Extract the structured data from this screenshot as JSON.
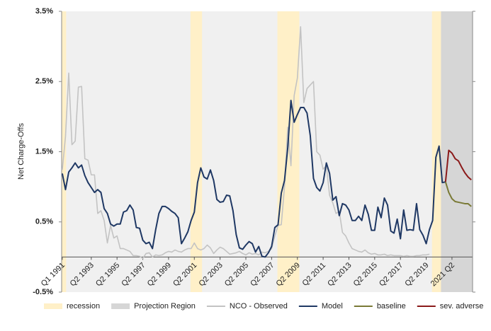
{
  "chart_data": {
    "type": "line",
    "y_label": "Net Charge-Offs",
    "x": [
      1991,
      1991.25,
      1991.5,
      1991.75,
      1992,
      1992.25,
      1992.5,
      1992.75,
      1993,
      1993.25,
      1993.5,
      1993.75,
      1994,
      1994.25,
      1994.5,
      1994.75,
      1995,
      1995.25,
      1995.5,
      1995.75,
      1996,
      1996.25,
      1996.5,
      1996.75,
      1997,
      1997.25,
      1997.5,
      1997.75,
      1998,
      1998.25,
      1998.5,
      1998.75,
      1999,
      1999.25,
      1999.5,
      1999.75,
      2000,
      2000.25,
      2000.5,
      2000.75,
      2001,
      2001.25,
      2001.5,
      2001.75,
      2002,
      2002.25,
      2002.5,
      2002.75,
      2003,
      2003.25,
      2003.5,
      2003.75,
      2004,
      2004.25,
      2004.5,
      2004.75,
      2005,
      2005.25,
      2005.5,
      2005.75,
      2006,
      2006.25,
      2006.5,
      2006.75,
      2007,
      2007.25,
      2007.5,
      2007.75,
      2008,
      2008.25,
      2008.5,
      2008.75,
      2009,
      2009.25,
      2009.5,
      2009.75,
      2010,
      2010.25,
      2010.5,
      2010.75,
      2011,
      2011.25,
      2011.5,
      2011.75,
      2012,
      2012.25,
      2012.5,
      2012.75,
      2013,
      2013.25,
      2013.5,
      2013.75,
      2014,
      2014.25,
      2014.5,
      2014.75,
      2015,
      2015.25,
      2015.5,
      2015.75,
      2016,
      2016.25,
      2016.5,
      2016.75,
      2017,
      2017.25,
      2017.5,
      2017.75,
      2018,
      2018.25,
      2018.5,
      2018.75,
      2019,
      2019.25,
      2019.5,
      2019.75,
      2020,
      2020.25,
      2020.5,
      2020.75,
      2021,
      2021.25,
      2021.5,
      2021.75,
      2022,
      2022.25,
      2022.5,
      2022.75
    ],
    "bands": [
      {
        "name": "recession",
        "color": "#fff0c8",
        "ranges": [
          [
            1990.95,
            1991.3
          ],
          [
            2000.95,
            2001.85
          ],
          [
            2007.7,
            2009.4
          ],
          [
            2019.7,
            2020.4
          ]
        ]
      },
      {
        "name": "Projection Region",
        "color": "#d6d6d6",
        "ranges": [
          [
            2020.4,
            2022.85
          ]
        ]
      }
    ],
    "series": [
      {
        "name": "NCO - Observed",
        "color": "#c3c3c3",
        "values": [
          1.24,
          1.72,
          2.62,
          1.6,
          1.65,
          2.42,
          2.43,
          1.4,
          1.38,
          1.17,
          1.17,
          0.62,
          0.66,
          0.52,
          0.2,
          0.45,
          0.27,
          0.3,
          0.12,
          0.12,
          0.1,
          0.08,
          0.02,
          0.02,
          0.01,
          -0.02,
          0.05,
          0.06,
          0.0,
          0.03,
          0.02,
          0.03,
          0.06,
          0.08,
          0.07,
          0.1,
          0.08,
          0.07,
          0.1,
          0.12,
          0.12,
          0.2,
          0.12,
          0.1,
          0.12,
          0.17,
          0.13,
          0.05,
          0.1,
          0.14,
          0.12,
          0.08,
          0.04,
          0.05,
          0.06,
          0.08,
          0.05,
          0.03,
          0.06,
          0.04,
          0.05,
          0.03,
          0.07,
          0.06,
          0.08,
          0.12,
          0.3,
          0.45,
          0.46,
          1.0,
          1.85,
          1.3,
          2.3,
          2.55,
          3.28,
          2.2,
          2.4,
          2.45,
          2.5,
          1.5,
          1.45,
          1.25,
          1.3,
          0.88,
          0.77,
          0.62,
          0.65,
          0.35,
          0.3,
          0.2,
          0.12,
          0.1,
          0.08,
          0.07,
          0.1,
          0.06,
          0.04,
          0.05,
          0.03,
          0.03,
          0.04,
          0.02,
          0.03,
          0.02,
          0.02,
          0.02,
          0.01,
          0.02,
          0.01,
          0.01,
          0.02,
          0.02,
          0.03,
          0.03,
          0.04,
          null,
          null,
          null,
          null,
          null,
          null,
          null,
          null,
          null,
          null,
          null,
          null,
          null
        ]
      },
      {
        "name": "Model",
        "color": "#1f3864",
        "values": [
          1.19,
          0.96,
          1.21,
          1.27,
          1.34,
          1.27,
          1.31,
          1.16,
          1.06,
          0.99,
          0.92,
          0.96,
          0.92,
          0.69,
          0.62,
          0.47,
          0.44,
          0.47,
          0.47,
          0.64,
          0.66,
          0.74,
          0.67,
          0.42,
          0.41,
          0.24,
          0.19,
          0.21,
          0.12,
          0.39,
          0.62,
          0.72,
          0.72,
          0.69,
          0.65,
          0.62,
          0.56,
          0.19,
          0.27,
          0.36,
          0.52,
          0.64,
          1.06,
          1.27,
          1.14,
          1.11,
          1.24,
          1.09,
          0.82,
          0.78,
          0.79,
          0.88,
          0.87,
          0.66,
          0.32,
          0.13,
          0.11,
          0.17,
          0.22,
          0.19,
          0.07,
          0.15,
          0.01,
          0.0,
          0.06,
          0.15,
          0.42,
          0.46,
          0.91,
          1.09,
          1.55,
          2.23,
          1.92,
          2.03,
          2.13,
          2.13,
          2.05,
          1.73,
          1.12,
          0.99,
          0.94,
          1.06,
          1.34,
          1.19,
          0.81,
          0.86,
          0.59,
          0.76,
          0.74,
          0.67,
          0.52,
          0.52,
          0.58,
          0.52,
          0.74,
          0.61,
          0.38,
          0.38,
          0.71,
          0.56,
          0.84,
          0.74,
          0.37,
          0.34,
          0.54,
          0.26,
          0.67,
          0.38,
          0.39,
          0.38,
          0.76,
          0.39,
          0.31,
          0.19,
          0.39,
          0.52,
          1.42,
          1.58,
          1.06,
          1.07,
          null,
          null,
          null,
          null,
          null,
          null,
          null,
          null
        ]
      },
      {
        "name": "baseline",
        "color": "#7a7a36",
        "values": [
          null,
          null,
          null,
          null,
          null,
          null,
          null,
          null,
          null,
          null,
          null,
          null,
          null,
          null,
          null,
          null,
          null,
          null,
          null,
          null,
          null,
          null,
          null,
          null,
          null,
          null,
          null,
          null,
          null,
          null,
          null,
          null,
          null,
          null,
          null,
          null,
          null,
          null,
          null,
          null,
          null,
          null,
          null,
          null,
          null,
          null,
          null,
          null,
          null,
          null,
          null,
          null,
          null,
          null,
          null,
          null,
          null,
          null,
          null,
          null,
          null,
          null,
          null,
          null,
          null,
          null,
          null,
          null,
          null,
          null,
          null,
          null,
          null,
          null,
          null,
          null,
          null,
          null,
          null,
          null,
          null,
          null,
          null,
          null,
          null,
          null,
          null,
          null,
          null,
          null,
          null,
          null,
          null,
          null,
          null,
          null,
          null,
          null,
          null,
          null,
          null,
          null,
          null,
          null,
          null,
          null,
          null,
          null,
          null,
          null,
          null,
          null,
          null,
          null,
          null,
          null,
          null,
          null,
          null,
          1.07,
          0.92,
          0.83,
          0.79,
          0.78,
          0.77,
          0.76,
          0.76,
          0.72
        ]
      },
      {
        "name": "sev. adverse",
        "color": "#8b1a1a",
        "values": [
          null,
          null,
          null,
          null,
          null,
          null,
          null,
          null,
          null,
          null,
          null,
          null,
          null,
          null,
          null,
          null,
          null,
          null,
          null,
          null,
          null,
          null,
          null,
          null,
          null,
          null,
          null,
          null,
          null,
          null,
          null,
          null,
          null,
          null,
          null,
          null,
          null,
          null,
          null,
          null,
          null,
          null,
          null,
          null,
          null,
          null,
          null,
          null,
          null,
          null,
          null,
          null,
          null,
          null,
          null,
          null,
          null,
          null,
          null,
          null,
          null,
          null,
          null,
          null,
          null,
          null,
          null,
          null,
          null,
          null,
          null,
          null,
          null,
          null,
          null,
          null,
          null,
          null,
          null,
          null,
          null,
          null,
          null,
          null,
          null,
          null,
          null,
          null,
          null,
          null,
          null,
          null,
          null,
          null,
          null,
          null,
          null,
          null,
          null,
          null,
          null,
          null,
          null,
          null,
          null,
          null,
          null,
          null,
          null,
          null,
          null,
          null,
          null,
          null,
          null,
          null,
          null,
          null,
          null,
          1.07,
          1.52,
          1.48,
          1.4,
          1.37,
          1.28,
          1.2,
          1.14,
          1.1
        ]
      }
    ],
    "xlim": [
      1990.95,
      2022.85
    ],
    "xticks": [
      {
        "value": 1991,
        "label": "Q1 1991"
      },
      {
        "value": 1993.25,
        "label": "Q2 1993"
      },
      {
        "value": 1995.25,
        "label": "Q2 1995"
      },
      {
        "value": 1997.25,
        "label": "Q2 1997"
      },
      {
        "value": 1999.25,
        "label": "Q2 1999"
      },
      {
        "value": 2001.25,
        "label": "Q2 2001"
      },
      {
        "value": 2003.25,
        "label": "Q2 2003"
      },
      {
        "value": 2005.25,
        "label": "Q2 2005"
      },
      {
        "value": 2007.25,
        "label": "Q2 2007"
      },
      {
        "value": 2009.25,
        "label": "Q2 2009"
      },
      {
        "value": 2011.25,
        "label": "Q2 2011"
      },
      {
        "value": 2013.25,
        "label": "Q2 2013"
      },
      {
        "value": 2015.25,
        "label": "Q2 2015"
      },
      {
        "value": 2017.25,
        "label": "Q2 2017"
      },
      {
        "value": 2019.25,
        "label": "Q2 2019"
      },
      {
        "value": 2021.25,
        "label": "2021 Q2"
      }
    ],
    "ylim": [
      -0.5,
      3.5
    ],
    "yticks": [
      {
        "value": -0.5,
        "label": "-0.5%"
      },
      {
        "value": 0.5,
        "label": "0.5%"
      },
      {
        "value": 1.5,
        "label": "1.5%"
      },
      {
        "value": 2.5,
        "label": "2.5%"
      },
      {
        "value": 3.5,
        "label": "3.5%"
      }
    ],
    "background": "#f0f0f0",
    "legend": "bottom"
  }
}
